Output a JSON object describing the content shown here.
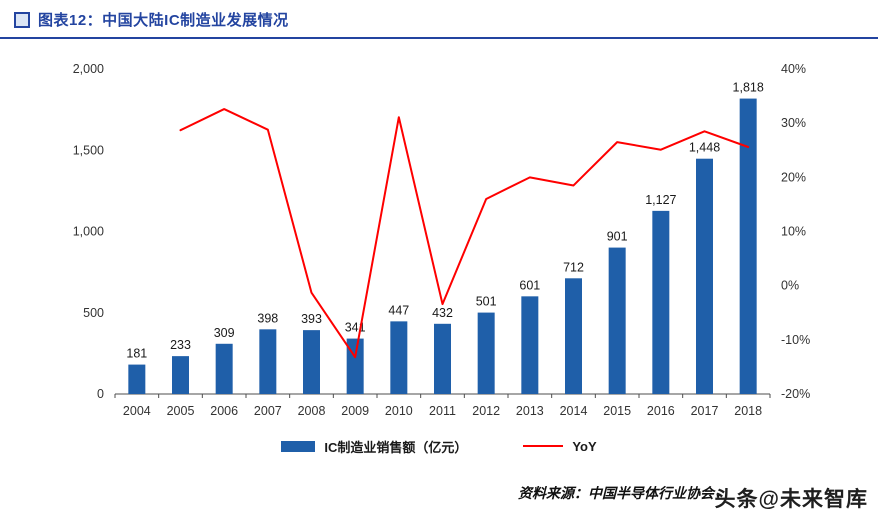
{
  "header": {
    "title": "图表12：中国大陆IC制造业发展情况"
  },
  "theme": {
    "accent_blue": "#2344a0",
    "bar_blue": "#1f5fa9",
    "line_red": "#fe0000"
  },
  "legend": {
    "bars": "IC制造业销售额（亿元）",
    "line": "YoY"
  },
  "footer": {
    "source": "资料来源：中国半导体行业协会，",
    "watermark": "头条@未来智库"
  },
  "chart_data": {
    "type": "bar",
    "title": "中国大陆IC制造业发展情况",
    "categories": [
      "2004",
      "2005",
      "2006",
      "2007",
      "2008",
      "2009",
      "2010",
      "2011",
      "2012",
      "2013",
      "2014",
      "2015",
      "2016",
      "2017",
      "2018"
    ],
    "series": [
      {
        "name": "IC制造业销售额（亿元）",
        "type": "bar",
        "axis": "left",
        "color": "#1f5fa9",
        "values": [
          181,
          233,
          309,
          398,
          393,
          341,
          447,
          432,
          501,
          601,
          712,
          901,
          1127,
          1448,
          1818
        ]
      },
      {
        "name": "YoY",
        "type": "line",
        "axis": "right",
        "color": "#fe0000",
        "values": [
          null,
          28.7,
          32.6,
          28.8,
          -1.3,
          -13.2,
          31.1,
          -3.4,
          16.0,
          20.0,
          18.5,
          26.5,
          25.1,
          28.5,
          25.6
        ]
      }
    ],
    "bar_labels": [
      "181",
      "233",
      "309",
      "398",
      "393",
      "341",
      "447",
      "432",
      "501",
      "601",
      "712",
      "901",
      "1,127",
      "1,448",
      "1,818"
    ],
    "left_axis": {
      "min": 0,
      "max": 2000,
      "ticks": [
        0,
        500,
        1000,
        1500,
        2000
      ],
      "labels": [
        "0",
        "500",
        "1,000",
        "1,500",
        "2,000"
      ]
    },
    "right_axis": {
      "min": -20,
      "max": 40,
      "ticks": [
        -20,
        -10,
        0,
        10,
        20,
        30,
        40
      ],
      "labels": [
        "-20%",
        "-10%",
        "0%",
        "10%",
        "20%",
        "30%",
        "40%"
      ]
    },
    "grid": false,
    "legend_position": "bottom"
  }
}
